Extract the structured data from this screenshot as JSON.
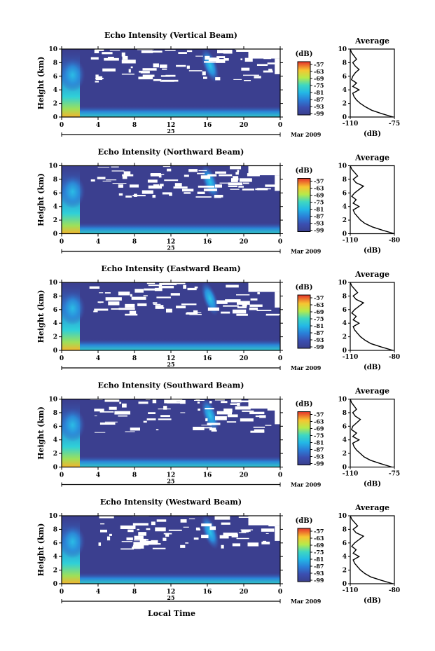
{
  "figure": {
    "xlabel": "Local Time",
    "date_label": "Mar 2009",
    "day_label": "25",
    "colorbar_unit": "(dB)",
    "average_title": "Average",
    "average_xlabel": "(dB)",
    "height_label": "Height (km)"
  },
  "chart_data": [
    {
      "type": "heatmap",
      "title": "Echo Intensity (Vertical Beam)",
      "ylabel": "Height (km)",
      "x_ticks": [
        "0",
        "4",
        "8",
        "12",
        "16",
        "20",
        "0"
      ],
      "xlim": [
        0,
        24
      ],
      "y_ticks": [
        "0",
        "2",
        "4",
        "6",
        "8",
        "10"
      ],
      "ylim": [
        0,
        10
      ],
      "colorbar": {
        "label": "(dB)",
        "ticks": [
          "-57",
          "-63",
          "-69",
          "-75",
          "-81",
          "-87",
          "-93",
          "-99"
        ],
        "range": [
          -99,
          -57
        ]
      },
      "average_profile": {
        "title": "Average",
        "xlabel": "(dB)",
        "x_ticks": [
          "-110",
          "-75"
        ],
        "xlim": [
          -110,
          -75
        ],
        "height": [
          0,
          0.5,
          1,
          1.5,
          2,
          2.5,
          3,
          3.5,
          4,
          4.5,
          5,
          5.5,
          6,
          6.5,
          7,
          7.5,
          8,
          8.5,
          9,
          9.5,
          10
        ],
        "db": [
          -76,
          -85,
          -93,
          -98,
          -102,
          -105,
          -107,
          -108,
          -103,
          -108,
          -105,
          -109,
          -108,
          -106,
          -103,
          -106,
          -108,
          -105,
          -107,
          -109,
          -110
        ]
      }
    },
    {
      "type": "heatmap",
      "title": "Echo Intensity (Northward Beam)",
      "ylabel": "Height (km)",
      "x_ticks": [
        "0",
        "4",
        "8",
        "12",
        "16",
        "20",
        "0"
      ],
      "xlim": [
        0,
        24
      ],
      "y_ticks": [
        "0",
        "2",
        "4",
        "6",
        "8",
        "10"
      ],
      "ylim": [
        0,
        10
      ],
      "colorbar": {
        "label": "(dB)",
        "ticks": [
          "-57",
          "-63",
          "-69",
          "-75",
          "-81",
          "-87",
          "-93",
          "-99"
        ],
        "range": [
          -99,
          -57
        ]
      },
      "average_profile": {
        "title": "Average",
        "xlabel": "(dB)",
        "x_ticks": [
          "-110",
          "-80"
        ],
        "xlim": [
          -110,
          -80
        ],
        "height": [
          0,
          0.5,
          1,
          1.5,
          2,
          2.5,
          3,
          3.5,
          4,
          4.5,
          5,
          5.5,
          6,
          6.5,
          7,
          7.5,
          8,
          8.5,
          9,
          9.5,
          10
        ],
        "db": [
          -80,
          -88,
          -95,
          -100,
          -103,
          -105,
          -107,
          -108,
          -104,
          -108,
          -106,
          -109,
          -107,
          -104,
          -101,
          -106,
          -108,
          -105,
          -107,
          -109,
          -110
        ]
      }
    },
    {
      "type": "heatmap",
      "title": "Echo Intensity (Eastward Beam)",
      "ylabel": "Height (km)",
      "x_ticks": [
        "0",
        "4",
        "8",
        "12",
        "16",
        "20",
        "0"
      ],
      "xlim": [
        0,
        24
      ],
      "y_ticks": [
        "0",
        "2",
        "4",
        "6",
        "8",
        "10"
      ],
      "ylim": [
        0,
        10
      ],
      "colorbar": {
        "label": "(dB)",
        "ticks": [
          "-57",
          "-63",
          "-69",
          "-75",
          "-81",
          "-87",
          "-93",
          "-99"
        ],
        "range": [
          -99,
          -57
        ]
      },
      "average_profile": {
        "title": "Average",
        "xlabel": "(dB)",
        "x_ticks": [
          "-110",
          "-80"
        ],
        "xlim": [
          -110,
          -80
        ],
        "height": [
          0,
          0.5,
          1,
          1.5,
          2,
          2.5,
          3,
          3.5,
          4,
          4.5,
          5,
          5.5,
          6,
          6.5,
          7,
          7.5,
          8,
          8.5,
          9,
          9.5,
          10
        ],
        "db": [
          -81,
          -89,
          -96,
          -100,
          -103,
          -105,
          -107,
          -108,
          -104,
          -108,
          -106,
          -109,
          -107,
          -104,
          -101,
          -106,
          -108,
          -105,
          -107,
          -109,
          -110
        ]
      }
    },
    {
      "type": "heatmap",
      "title": "Echo Intensity (Southward Beam)",
      "ylabel": "Height (km)",
      "x_ticks": [
        "0",
        "4",
        "8",
        "12",
        "16",
        "20",
        "0"
      ],
      "xlim": [
        0,
        24
      ],
      "y_ticks": [
        "0",
        "2",
        "4",
        "6",
        "8",
        "10"
      ],
      "ylim": [
        0,
        10
      ],
      "colorbar": {
        "label": "(dB)",
        "ticks": [
          "-57",
          "-63",
          "-69",
          "-75",
          "-81",
          "-87",
          "-93",
          "-99"
        ],
        "range": [
          -99,
          -57
        ]
      },
      "average_profile": {
        "title": "Average",
        "xlabel": "(dB)",
        "x_ticks": [
          "-110",
          "-75"
        ],
        "xlim": [
          -110,
          -75
        ],
        "height": [
          0,
          0.5,
          1,
          1.5,
          2,
          2.5,
          3,
          3.5,
          4,
          4.5,
          5,
          5.5,
          6,
          6.5,
          7,
          7.5,
          8,
          8.5,
          9,
          9.5,
          10
        ],
        "db": [
          -77,
          -86,
          -94,
          -99,
          -102,
          -105,
          -107,
          -108,
          -103,
          -108,
          -105,
          -109,
          -108,
          -105,
          -102,
          -106,
          -108,
          -105,
          -107,
          -109,
          -110
        ]
      }
    },
    {
      "type": "heatmap",
      "title": "Echo Intensity (Westward Beam)",
      "ylabel": "Height (km)",
      "x_ticks": [
        "0",
        "4",
        "8",
        "12",
        "16",
        "20",
        "0"
      ],
      "xlim": [
        0,
        24
      ],
      "y_ticks": [
        "0",
        "2",
        "4",
        "6",
        "8",
        "10"
      ],
      "ylim": [
        0,
        10
      ],
      "colorbar": {
        "label": "(dB)",
        "ticks": [
          "-57",
          "-63",
          "-69",
          "-75",
          "-81",
          "-87",
          "-93",
          "-99"
        ],
        "range": [
          -99,
          -57
        ]
      },
      "average_profile": {
        "title": "Average",
        "xlabel": "(dB)",
        "x_ticks": [
          "-110",
          "-80"
        ],
        "xlim": [
          -110,
          -80
        ],
        "height": [
          0,
          0.5,
          1,
          1.5,
          2,
          2.5,
          3,
          3.5,
          4,
          4.5,
          5,
          5.5,
          6,
          6.5,
          7,
          7.5,
          8,
          8.5,
          9,
          9.5,
          10
        ],
        "db": [
          -81,
          -89,
          -96,
          -100,
          -103,
          -105,
          -107,
          -108,
          -104,
          -108,
          -106,
          -109,
          -107,
          -104,
          -101,
          -106,
          -108,
          -105,
          -107,
          -109,
          -110
        ]
      }
    }
  ]
}
